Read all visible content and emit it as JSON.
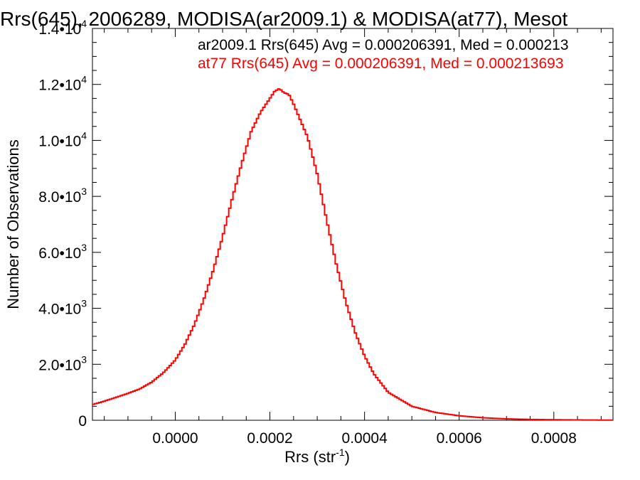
{
  "chart_data": {
    "type": "line",
    "step": true,
    "title": "Rrs(645), 2006289, MODISA(ar2009.1) & MODISA(at77), Mesot",
    "xlabel_main": "Rrs (str",
    "xlabel_exp": "-1",
    "xlabel_close": ")",
    "ylabel": "Number of Observations",
    "xlim": [
      -0.000175,
      0.000925
    ],
    "ylim": [
      0,
      14000
    ],
    "x_ticks": [
      {
        "value": 0.0,
        "label": "0.0000"
      },
      {
        "value": 0.0002,
        "label": "0.0002"
      },
      {
        "value": 0.0004,
        "label": "0.0004"
      },
      {
        "value": 0.0006,
        "label": "0.0006"
      },
      {
        "value": 0.0008,
        "label": "0.0008"
      }
    ],
    "x_minor_step": 5e-05,
    "y_ticks": [
      {
        "value": 0,
        "mant": "0",
        "exp": ""
      },
      {
        "value": 2000,
        "mant": "2.0•10",
        "exp": "3"
      },
      {
        "value": 4000,
        "mant": "4.0•10",
        "exp": "3"
      },
      {
        "value": 6000,
        "mant": "6.0•10",
        "exp": "3"
      },
      {
        "value": 8000,
        "mant": "8.0•10",
        "exp": "3"
      },
      {
        "value": 10000,
        "mant": "1.0•10",
        "exp": "4"
      },
      {
        "value": 12000,
        "mant": "1.2•10",
        "exp": "4"
      },
      {
        "value": 14000,
        "mant": "1.4•10",
        "exp": "4"
      }
    ],
    "y_minor_step": 500,
    "annotations": [
      {
        "text": "ar2009.1 Rrs(645) Avg = 0.000206391, Med = 0.000213",
        "color": "#000000"
      },
      {
        "text": "at77 Rrs(645) Avg = 0.000206391, Med = 0.000213693",
        "color": "#ff0000"
      }
    ],
    "series": [
      {
        "color": "#ff0000",
        "points": [
          [
            -0.000175,
            560
          ],
          [
            -0.00015,
            680
          ],
          [
            -0.000125,
            820
          ],
          [
            -0.0001,
            960
          ],
          [
            -7.5e-05,
            1120
          ],
          [
            -5e-05,
            1360
          ],
          [
            -2.5e-05,
            1700
          ],
          [
            0.0,
            2150
          ],
          [
            2e-05,
            2700
          ],
          [
            4e-05,
            3400
          ],
          [
            6e-05,
            4300
          ],
          [
            8e-05,
            5350
          ],
          [
            0.0001,
            6550
          ],
          [
            0.00012,
            7900
          ],
          [
            0.00014,
            9150
          ],
          [
            0.00016,
            10300
          ],
          [
            0.00018,
            11000
          ],
          [
            0.0002,
            11500
          ],
          [
            0.00021,
            11750
          ],
          [
            0.00022,
            11850
          ],
          [
            0.00023,
            11700
          ],
          [
            0.00024,
            11650
          ],
          [
            0.00025,
            11300
          ],
          [
            0.00026,
            10900
          ],
          [
            0.00028,
            10100
          ],
          [
            0.0003,
            8800
          ],
          [
            0.00032,
            7150
          ],
          [
            0.00034,
            5600
          ],
          [
            0.00036,
            4250
          ],
          [
            0.00038,
            3150
          ],
          [
            0.0004,
            2300
          ],
          [
            0.00042,
            1650
          ],
          [
            0.00045,
            1000
          ],
          [
            0.0005,
            500
          ],
          [
            0.00055,
            280
          ],
          [
            0.0006,
            160
          ],
          [
            0.00065,
            90
          ],
          [
            0.0007,
            50
          ],
          [
            0.00075,
            30
          ],
          [
            0.0008,
            20
          ],
          [
            0.00085,
            12
          ],
          [
            0.000925,
            5
          ]
        ]
      }
    ]
  }
}
